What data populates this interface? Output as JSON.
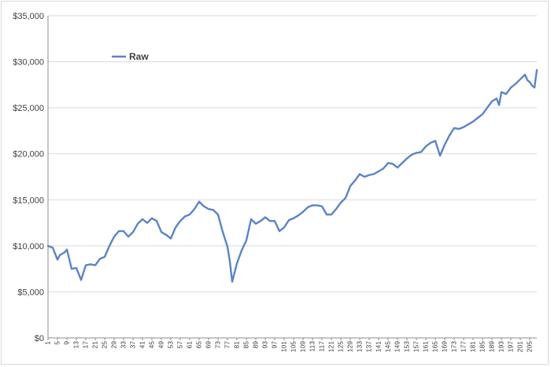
{
  "chart_data": {
    "type": "line",
    "title": "",
    "xlabel": "",
    "ylabel": "",
    "ylim": [
      0,
      35000
    ],
    "yticks": [
      "$0",
      "$5,000",
      "$10,000",
      "$15,000",
      "$20,000",
      "$25,000",
      "$30,000",
      "$35,000"
    ],
    "xlim": [
      1,
      208
    ],
    "xticks": [
      "1",
      "5",
      "9",
      "13",
      "17",
      "21",
      "25",
      "29",
      "33",
      "37",
      "41",
      "45",
      "49",
      "53",
      "57",
      "61",
      "65",
      "69",
      "73",
      "77",
      "81",
      "85",
      "89",
      "93",
      "97",
      "101",
      "105",
      "109",
      "113",
      "117",
      "121",
      "125",
      "129",
      "133",
      "137",
      "141",
      "145",
      "149",
      "153",
      "157",
      "161",
      "165",
      "169",
      "173",
      "177",
      "181",
      "185",
      "189",
      "193",
      "197",
      "201",
      "205"
    ],
    "grid": "horizontal",
    "legend_position": "top-left",
    "series": [
      {
        "name": "Raw",
        "color": "#5b84c4",
        "points": [
          [
            1,
            10000
          ],
          [
            3,
            9800
          ],
          [
            5,
            8500
          ],
          [
            6,
            9000
          ],
          [
            8,
            9300
          ],
          [
            9,
            9600
          ],
          [
            11,
            7500
          ],
          [
            13,
            7600
          ],
          [
            15,
            6300
          ],
          [
            17,
            7900
          ],
          [
            19,
            8000
          ],
          [
            21,
            7900
          ],
          [
            23,
            8600
          ],
          [
            25,
            8800
          ],
          [
            27,
            10000
          ],
          [
            29,
            11000
          ],
          [
            31,
            11600
          ],
          [
            33,
            11600
          ],
          [
            35,
            11000
          ],
          [
            37,
            11500
          ],
          [
            39,
            12400
          ],
          [
            41,
            12900
          ],
          [
            43,
            12500
          ],
          [
            45,
            13000
          ],
          [
            47,
            12700
          ],
          [
            49,
            11500
          ],
          [
            51,
            11200
          ],
          [
            53,
            10800
          ],
          [
            55,
            12000
          ],
          [
            57,
            12700
          ],
          [
            59,
            13200
          ],
          [
            61,
            13400
          ],
          [
            63,
            14000
          ],
          [
            65,
            14800
          ],
          [
            67,
            14300
          ],
          [
            69,
            14000
          ],
          [
            71,
            13900
          ],
          [
            73,
            13400
          ],
          [
            75,
            11500
          ],
          [
            77,
            9900
          ],
          [
            78,
            8300
          ],
          [
            79,
            6100
          ],
          [
            81,
            8100
          ],
          [
            83,
            9500
          ],
          [
            85,
            10600
          ],
          [
            87,
            12900
          ],
          [
            89,
            12400
          ],
          [
            91,
            12700
          ],
          [
            93,
            13100
          ],
          [
            95,
            12700
          ],
          [
            97,
            12700
          ],
          [
            99,
            11600
          ],
          [
            101,
            12000
          ],
          [
            103,
            12800
          ],
          [
            105,
            13000
          ],
          [
            107,
            13300
          ],
          [
            109,
            13700
          ],
          [
            111,
            14200
          ],
          [
            113,
            14400
          ],
          [
            115,
            14400
          ],
          [
            117,
            14300
          ],
          [
            119,
            13400
          ],
          [
            121,
            13400
          ],
          [
            123,
            14000
          ],
          [
            125,
            14700
          ],
          [
            127,
            15200
          ],
          [
            129,
            16500
          ],
          [
            131,
            17100
          ],
          [
            133,
            17800
          ],
          [
            135,
            17500
          ],
          [
            137,
            17700
          ],
          [
            139,
            17800
          ],
          [
            141,
            18100
          ],
          [
            143,
            18400
          ],
          [
            145,
            19000
          ],
          [
            147,
            18900
          ],
          [
            149,
            18500
          ],
          [
            151,
            19000
          ],
          [
            153,
            19500
          ],
          [
            155,
            19900
          ],
          [
            157,
            20100
          ],
          [
            159,
            20200
          ],
          [
            161,
            20800
          ],
          [
            163,
            21200
          ],
          [
            165,
            21400
          ],
          [
            167,
            19800
          ],
          [
            169,
            21000
          ],
          [
            171,
            22000
          ],
          [
            173,
            22800
          ],
          [
            175,
            22700
          ],
          [
            177,
            22900
          ],
          [
            179,
            23200
          ],
          [
            181,
            23500
          ],
          [
            183,
            23900
          ],
          [
            185,
            24300
          ],
          [
            187,
            25000
          ],
          [
            189,
            25700
          ],
          [
            191,
            26000
          ],
          [
            192,
            25300
          ],
          [
            193,
            26700
          ],
          [
            195,
            26500
          ],
          [
            197,
            27200
          ],
          [
            199,
            27600
          ],
          [
            201,
            28100
          ],
          [
            203,
            28600
          ],
          [
            204,
            28000
          ],
          [
            205,
            27800
          ],
          [
            206,
            27400
          ],
          [
            207,
            27200
          ],
          [
            208,
            29100
          ]
        ]
      }
    ]
  }
}
